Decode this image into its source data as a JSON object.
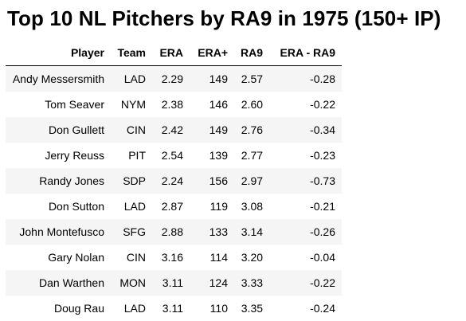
{
  "title": "Top 10 NL Pitchers by RA9 in 1975 (150+ IP)",
  "table": {
    "columns": [
      "Player",
      "Team",
      "ERA",
      "ERA+",
      "RA9",
      "ERA - RA9"
    ],
    "rows": [
      [
        "Andy Messersmith",
        "LAD",
        "2.29",
        "149",
        "2.57",
        "-0.28"
      ],
      [
        "Tom Seaver",
        "NYM",
        "2.38",
        "146",
        "2.60",
        "-0.22"
      ],
      [
        "Don Gullett",
        "CIN",
        "2.42",
        "149",
        "2.76",
        "-0.34"
      ],
      [
        "Jerry Reuss",
        "PIT",
        "2.54",
        "139",
        "2.77",
        "-0.23"
      ],
      [
        "Randy Jones",
        "SDP",
        "2.24",
        "156",
        "2.97",
        "-0.73"
      ],
      [
        "Don Sutton",
        "LAD",
        "2.87",
        "119",
        "3.08",
        "-0.21"
      ],
      [
        "John Montefusco",
        "SFG",
        "2.88",
        "133",
        "3.14",
        "-0.26"
      ],
      [
        "Gary Nolan",
        "CIN",
        "3.16",
        "114",
        "3.20",
        "-0.04"
      ],
      [
        "Dan Warthen",
        "MON",
        "3.11",
        "124",
        "3.33",
        "-0.22"
      ],
      [
        "Doug Rau",
        "LAD",
        "3.11",
        "110",
        "3.35",
        "-0.24"
      ]
    ]
  },
  "colors": {
    "stripe": "#f5f5f5",
    "text": "#000000",
    "background": "#ffffff"
  }
}
